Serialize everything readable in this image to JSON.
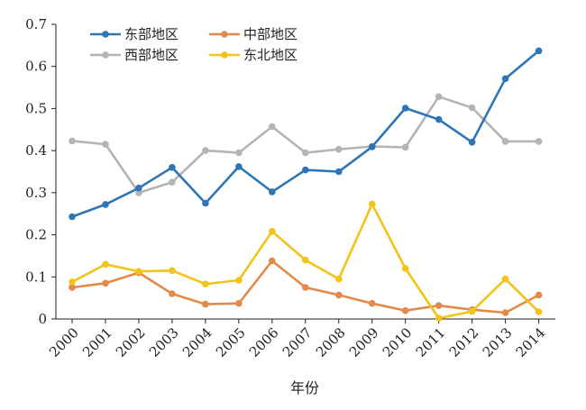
{
  "chart_data": {
    "type": "line",
    "xlabel": "年份",
    "ylabel": "",
    "ylim": [
      0,
      0.7
    ],
    "yticks": [
      0,
      0.1,
      0.2,
      0.3,
      0.4,
      0.5,
      0.6,
      0.7
    ],
    "ytick_labels": [
      "0",
      "0.1",
      "0.2",
      "0.3",
      "0.4",
      "0.5",
      "0.6",
      "0.7"
    ],
    "categories": [
      "2000",
      "2001",
      "2002",
      "2003",
      "2004",
      "2005",
      "2006",
      "2007",
      "2008",
      "2009",
      "2010",
      "2011",
      "2012",
      "2013",
      "2014"
    ],
    "grid": false,
    "legend_position": "top-left",
    "series": [
      {
        "name": "东部地区",
        "color": "#2e75b6",
        "values": [
          0.243,
          0.272,
          0.311,
          0.36,
          0.275,
          0.362,
          0.302,
          0.354,
          0.35,
          0.409,
          0.501,
          0.474,
          0.42,
          0.571,
          0.637
        ]
      },
      {
        "name": "西部地区",
        "color": "#b4b4b4",
        "values": [
          0.423,
          0.415,
          0.3,
          0.325,
          0.4,
          0.395,
          0.457,
          0.395,
          0.403,
          0.41,
          0.408,
          0.528,
          0.502,
          0.422,
          0.422
        ]
      },
      {
        "name": "中部地区",
        "color": "#e38a4b",
        "values": [
          0.075,
          0.085,
          0.11,
          0.06,
          0.035,
          0.037,
          0.138,
          0.075,
          0.057,
          0.037,
          0.02,
          0.032,
          0.022,
          0.015,
          0.057
        ]
      },
      {
        "name": "东北地区",
        "color": "#f2c318",
        "values": [
          0.088,
          0.13,
          0.113,
          0.115,
          0.083,
          0.092,
          0.208,
          0.14,
          0.095,
          0.273,
          0.12,
          0.002,
          0.018,
          0.095,
          0.017
        ]
      }
    ]
  }
}
